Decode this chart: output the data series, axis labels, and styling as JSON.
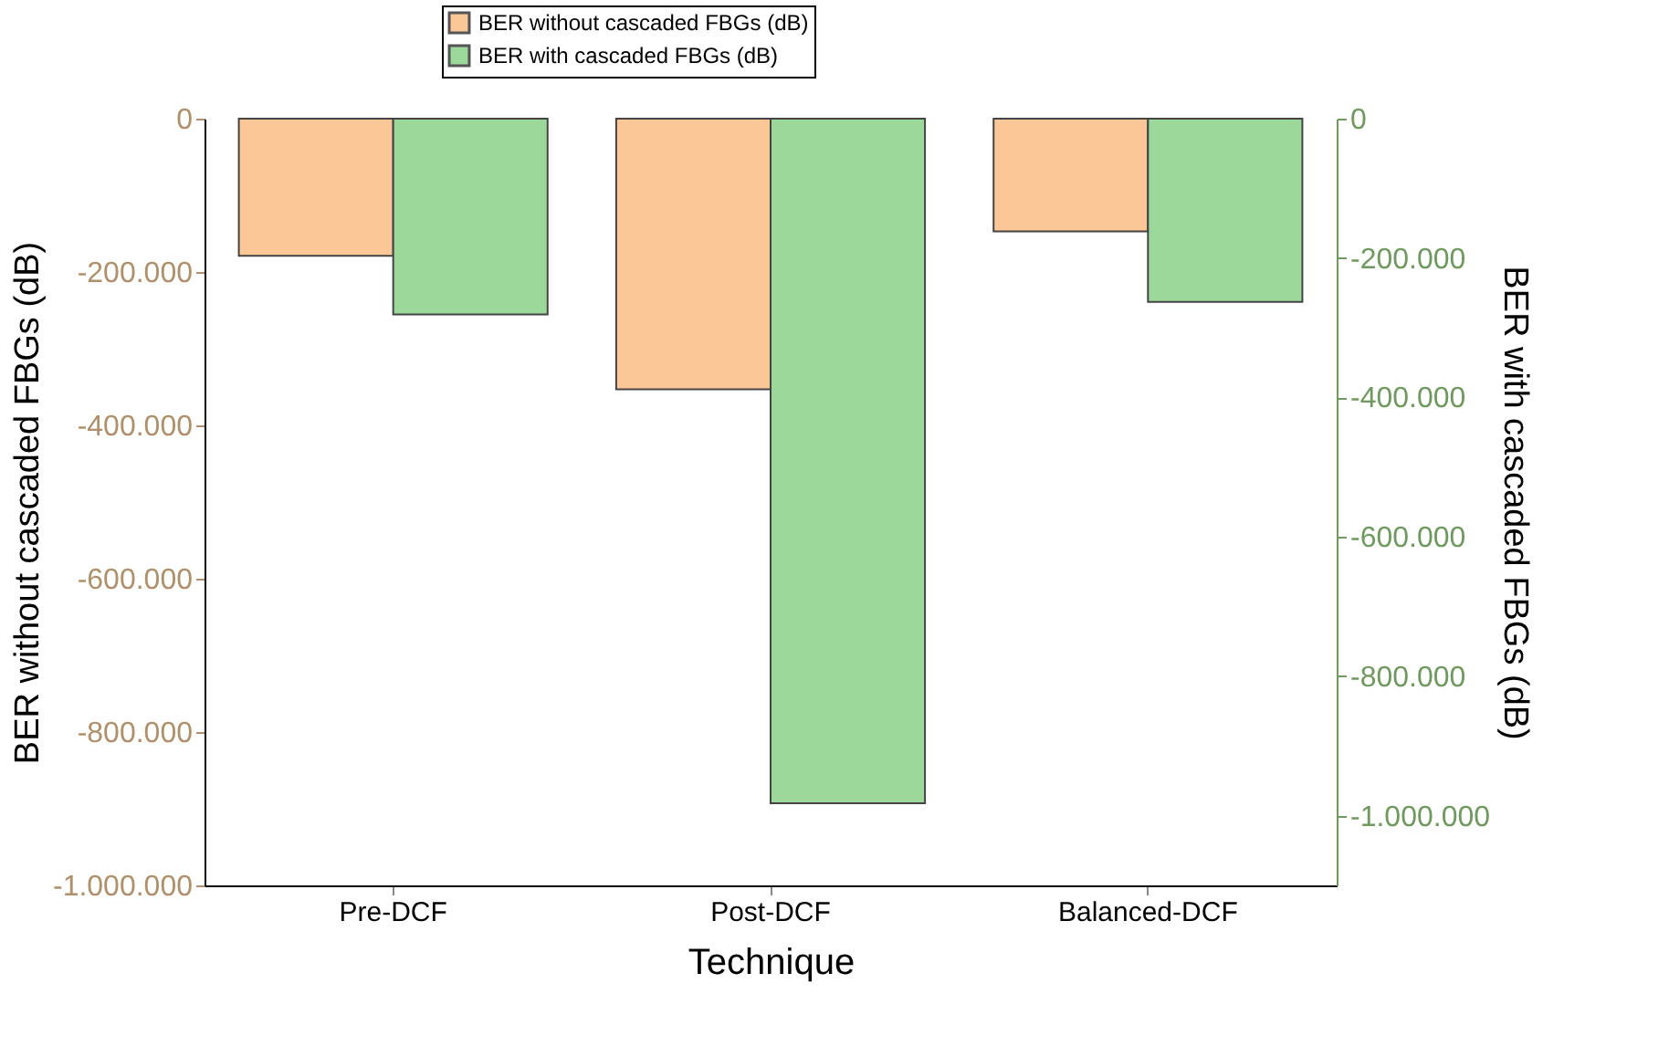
{
  "chart_data": {
    "type": "bar",
    "xlabel": "Technique",
    "ylabel": "BER without cascaded FBGs (dB)",
    "y2label": "BER with cascaded FBGs (dB)",
    "categories": [
      "Pre-DCF",
      "Post-DCF",
      "Balanced-DCF"
    ],
    "series": [
      {
        "name": "BER without cascaded FBGs (dB)",
        "color": "#fbc797",
        "values": [
          -179000,
          -353000,
          -147000
        ]
      },
      {
        "name": "BER with cascaded FBGs (dB)",
        "color": "#9dd89b",
        "values": [
          -281000,
          -982000,
          -263000
        ],
        "axis": "y2"
      }
    ],
    "ylim": [
      -1000000,
      0
    ],
    "yticks": [
      0,
      {
        "value": -200000,
        "label": "-200.000"
      },
      {
        "value": -400000,
        "label": "-400.000"
      },
      {
        "value": -600000,
        "label": "-600.000"
      },
      {
        "value": -800000,
        "label": "-800.000"
      },
      {
        "value": -1000000,
        "label": "-1.000.000"
      }
    ],
    "y2lim": [
      -1100000,
      0
    ],
    "y2ticks": [
      0,
      {
        "value": -200000,
        "label": "-200.000"
      },
      {
        "value": -400000,
        "label": "-400.000"
      },
      {
        "value": -600000,
        "label": "-600.000"
      },
      {
        "value": -800000,
        "label": "-800.000"
      },
      {
        "value": -1000000,
        "label": "-1.000.000"
      }
    ],
    "legend": "top",
    "grid": false
  }
}
